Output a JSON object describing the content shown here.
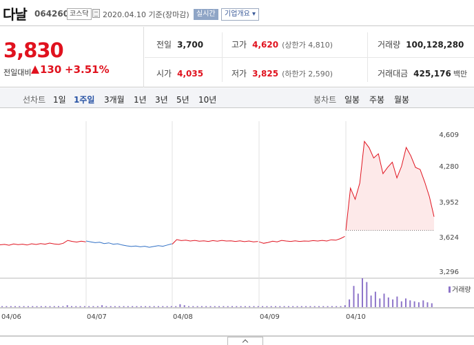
{
  "header": {
    "name": "다날",
    "code": "064260",
    "market": "코스닥",
    "date": "2020.04.10 기준(장마감)",
    "live": "실시간",
    "corp_info": "기업개요 ▾"
  },
  "price": {
    "now": "3,830",
    "compare_label": "전일대비",
    "change": "130",
    "change_pct": "+3.51%",
    "prev_label": "전일",
    "prev": "3,700",
    "open_label": "시가",
    "open": "4,035",
    "high_label": "고가",
    "high": "4,620",
    "upper_limit": "(상한가 4,810)",
    "low_label": "저가",
    "low": "3,825",
    "lower_limit": "(하한가 2,590)",
    "volume_label": "거래량",
    "volume": "100,128,280",
    "amount_label": "거래대금",
    "amount": "425,176",
    "amount_unit": "백만"
  },
  "periods": {
    "line_label": "선차트",
    "line": [
      "1일",
      "1주일",
      "3개월",
      "1년",
      "3년",
      "5년",
      "10년"
    ],
    "selected": "1주일",
    "candle_label": "봉차트",
    "candle": [
      "일봉",
      "주봉",
      "월봉"
    ]
  },
  "colors": {
    "up": "#e0121e",
    "down": "#2f6fc5",
    "volume": "#8d74c9",
    "fill": "#fde9e9"
  },
  "chart_data": {
    "type": "line",
    "x_ticks": [
      "04/06",
      "04/07",
      "04/08",
      "04/09",
      "04/10"
    ],
    "y_ticks": [
      "4,609",
      "4,280",
      "3,952",
      "3,624",
      "3,296"
    ],
    "ylim": [
      3296,
      4609
    ],
    "prev_close": 3700,
    "volume_label": "거래량",
    "days": [
      {
        "date": "04/06",
        "color": "up",
        "values": [
          3562,
          3566,
          3558,
          3570,
          3563,
          3568,
          3560,
          3572,
          3565,
          3574,
          3568,
          3578,
          3570,
          3566,
          3576,
          3604,
          3594,
          3588,
          3596,
          3590
        ]
      },
      {
        "date": "04/07",
        "color": "down",
        "values": [
          3598,
          3590,
          3582,
          3586,
          3574,
          3580,
          3568,
          3572,
          3560,
          3552,
          3546,
          3550,
          3543,
          3548,
          3538,
          3546,
          3554,
          3548,
          3560,
          3572
        ]
      },
      {
        "date": "04/08",
        "color": "up",
        "values": [
          3568,
          3612,
          3602,
          3606,
          3598,
          3604,
          3596,
          3600,
          3594,
          3602,
          3596,
          3604,
          3598,
          3600,
          3594,
          3600,
          3592,
          3598,
          3590,
          3594
        ]
      },
      {
        "date": "04/09",
        "color": "up",
        "values": [
          3590,
          3576,
          3584,
          3596,
          3590,
          3604,
          3598,
          3594,
          3600,
          3594,
          3598,
          3596,
          3602,
          3598,
          3604,
          3598,
          3610,
          3606,
          3620,
          3642
        ]
      },
      {
        "date": "04/10",
        "color": "up",
        "values": [
          3700,
          4102,
          3996,
          4150,
          4548,
          4488,
          4390,
          4430,
          4240,
          4300,
          4350,
          4200,
          4310,
          4490,
          4410,
          4300,
          4280,
          4160,
          4020,
          3830
        ]
      }
    ],
    "volume": [
      1,
      1,
      1,
      1,
      1,
      1,
      1,
      1,
      1,
      1,
      1,
      1,
      1,
      1,
      1,
      2,
      1,
      1,
      1,
      1,
      1,
      1,
      1,
      2,
      1,
      1,
      1,
      1,
      1,
      1,
      1,
      1,
      1,
      1,
      1,
      1,
      1,
      1,
      1,
      1,
      1,
      3,
      2,
      1,
      1,
      1,
      1,
      1,
      1,
      1,
      1,
      1,
      1,
      1,
      1,
      1,
      1,
      1,
      1,
      1,
      1,
      1,
      1,
      1,
      1,
      1,
      1,
      1,
      1,
      1,
      1,
      1,
      1,
      1,
      1,
      1,
      1,
      1,
      1,
      2,
      8,
      22,
      14,
      30,
      26,
      12,
      16,
      9,
      14,
      10,
      8,
      11,
      6,
      9,
      7,
      6,
      5,
      7,
      5,
      4
    ]
  }
}
